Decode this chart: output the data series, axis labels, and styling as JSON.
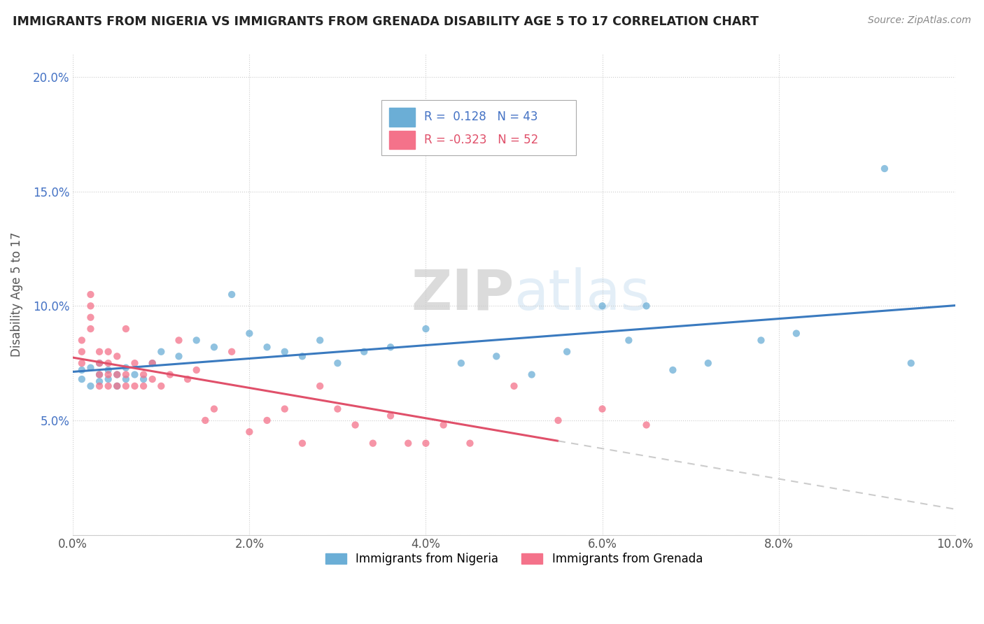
{
  "title": "IMMIGRANTS FROM NIGERIA VS IMMIGRANTS FROM GRENADA DISABILITY AGE 5 TO 17 CORRELATION CHART",
  "source": "Source: ZipAtlas.com",
  "ylabel": "Disability Age 5 to 17",
  "xlim": [
    0.0,
    0.1
  ],
  "ylim": [
    0.0,
    0.21
  ],
  "xticks": [
    0.0,
    0.02,
    0.04,
    0.06,
    0.08,
    0.1
  ],
  "xtick_labels": [
    "0.0%",
    "2.0%",
    "4.0%",
    "6.0%",
    "8.0%",
    "10.0%"
  ],
  "yticks": [
    0.0,
    0.05,
    0.1,
    0.15,
    0.2
  ],
  "ytick_labels": [
    "",
    "5.0%",
    "10.0%",
    "15.0%",
    "20.0%"
  ],
  "nigeria_color": "#6baed6",
  "grenada_color": "#f4728a",
  "nigeria_line_color": "#3a7abf",
  "grenada_line_color": "#e0506a",
  "nigeria_R": 0.128,
  "nigeria_N": 43,
  "grenada_R": -0.323,
  "grenada_N": 52,
  "watermark": "ZIPatlas",
  "nigeria_scatter_x": [
    0.001,
    0.001,
    0.002,
    0.002,
    0.003,
    0.003,
    0.003,
    0.004,
    0.004,
    0.005,
    0.005,
    0.006,
    0.006,
    0.007,
    0.008,
    0.009,
    0.01,
    0.012,
    0.014,
    0.016,
    0.018,
    0.02,
    0.022,
    0.024,
    0.026,
    0.028,
    0.03,
    0.033,
    0.036,
    0.04,
    0.044,
    0.048,
    0.052,
    0.056,
    0.06,
    0.063,
    0.065,
    0.068,
    0.072,
    0.078,
    0.082,
    0.092,
    0.095
  ],
  "nigeria_scatter_y": [
    0.068,
    0.072,
    0.065,
    0.073,
    0.067,
    0.07,
    0.075,
    0.068,
    0.072,
    0.065,
    0.07,
    0.068,
    0.073,
    0.07,
    0.068,
    0.075,
    0.08,
    0.078,
    0.085,
    0.082,
    0.105,
    0.088,
    0.082,
    0.08,
    0.078,
    0.085,
    0.075,
    0.08,
    0.082,
    0.09,
    0.075,
    0.078,
    0.07,
    0.08,
    0.1,
    0.085,
    0.1,
    0.072,
    0.075,
    0.085,
    0.088,
    0.16,
    0.075
  ],
  "grenada_scatter_x": [
    0.001,
    0.001,
    0.001,
    0.002,
    0.002,
    0.002,
    0.002,
    0.003,
    0.003,
    0.003,
    0.003,
    0.004,
    0.004,
    0.004,
    0.004,
    0.005,
    0.005,
    0.005,
    0.006,
    0.006,
    0.006,
    0.007,
    0.007,
    0.008,
    0.008,
    0.009,
    0.009,
    0.01,
    0.011,
    0.012,
    0.013,
    0.014,
    0.015,
    0.016,
    0.018,
    0.02,
    0.022,
    0.024,
    0.026,
    0.028,
    0.03,
    0.032,
    0.034,
    0.036,
    0.038,
    0.04,
    0.042,
    0.045,
    0.05,
    0.055,
    0.06,
    0.065
  ],
  "grenada_scatter_y": [
    0.075,
    0.08,
    0.085,
    0.09,
    0.095,
    0.1,
    0.105,
    0.065,
    0.07,
    0.075,
    0.08,
    0.065,
    0.07,
    0.075,
    0.08,
    0.065,
    0.07,
    0.078,
    0.065,
    0.07,
    0.09,
    0.065,
    0.075,
    0.065,
    0.07,
    0.068,
    0.075,
    0.065,
    0.07,
    0.085,
    0.068,
    0.072,
    0.05,
    0.055,
    0.08,
    0.045,
    0.05,
    0.055,
    0.04,
    0.065,
    0.055,
    0.048,
    0.04,
    0.052,
    0.04,
    0.04,
    0.048,
    0.04,
    0.065,
    0.05,
    0.055,
    0.048
  ],
  "grenada_line_xmax": 0.055,
  "grenada_dashed_xstart": 0.055,
  "grenada_dashed_xend": 0.1
}
